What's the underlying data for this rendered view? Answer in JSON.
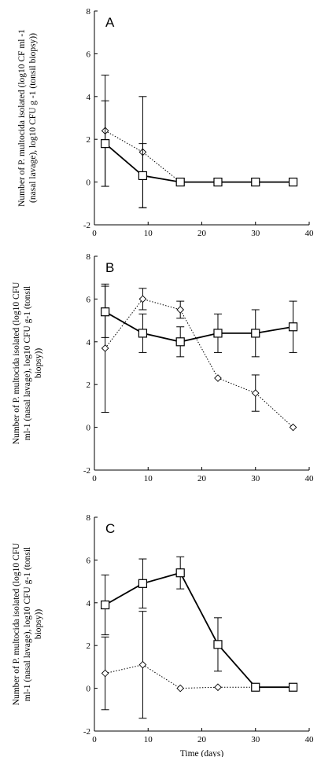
{
  "chart_data": [
    {
      "type": "line",
      "panel": "A",
      "ylabel": [
        "Number of P. multocida isolated (log10 CF ml -1",
        "(nasal lavage), log10 CFU g -1 (tonsil biopsy))"
      ],
      "xlim": [
        0,
        40
      ],
      "ylim": [
        -2,
        8
      ],
      "xticks": [
        "0",
        "10",
        "20",
        "30",
        "40"
      ],
      "yticks": [
        "-2",
        "0",
        "2",
        "4",
        "6",
        "8"
      ],
      "series": [
        {
          "marker": "square",
          "line": "solid",
          "x": [
            2,
            9,
            16,
            23,
            30,
            37
          ],
          "y": [
            1.8,
            0.3,
            0,
            0,
            0,
            0
          ],
          "err": [
            2.0,
            1.5,
            0,
            0,
            0,
            0
          ]
        },
        {
          "marker": "diamond",
          "line": "dotted",
          "x": [
            2,
            9,
            16
          ],
          "y": [
            2.4,
            1.4,
            0
          ],
          "err": [
            2.6,
            2.6,
            0
          ]
        }
      ]
    },
    {
      "type": "line",
      "panel": "B",
      "ylabel": [
        "Number of P. multocida isolated (log10 CFU",
        "ml-1 (nasal lavage), log10 CFU g-1 (tonsil",
        "biopsy))"
      ],
      "xlim": [
        0,
        40
      ],
      "ylim": [
        -2,
        8
      ],
      "xticks": [
        "0",
        "10",
        "20",
        "30",
        "40"
      ],
      "yticks": [
        "-2",
        "0",
        "2",
        "4",
        "6",
        "8"
      ],
      "series": [
        {
          "marker": "square",
          "line": "solid",
          "x": [
            2,
            9,
            16,
            23,
            30,
            37
          ],
          "y": [
            5.4,
            4.4,
            4.0,
            4.4,
            4.4,
            4.7
          ],
          "err": [
            1.2,
            0.9,
            0.7,
            0.9,
            1.1,
            1.2
          ]
        },
        {
          "marker": "diamond",
          "line": "dotted",
          "x": [
            2,
            9,
            16,
            23,
            30,
            37
          ],
          "y": [
            3.7,
            6.0,
            5.5,
            2.3,
            1.6,
            0
          ],
          "err": [
            3.0,
            0.5,
            0.4,
            0,
            0.85,
            0
          ]
        }
      ]
    },
    {
      "type": "line",
      "panel": "C",
      "ylabel": [
        "Number of P. multocida isolated (log10 CFU",
        "ml-1 (nasal lavage), log10 CFU g-1 (tonsil",
        "biopsy))"
      ],
      "xlabel": "Time (days)",
      "xlim": [
        0,
        40
      ],
      "ylim": [
        -2,
        8
      ],
      "xticks": [
        "0",
        "10",
        "20",
        "30",
        "40"
      ],
      "yticks": [
        "-2",
        "0",
        "2",
        "4",
        "6",
        "8"
      ],
      "series": [
        {
          "marker": "square",
          "line": "solid",
          "x": [
            2,
            9,
            16,
            23,
            30,
            37
          ],
          "y": [
            3.9,
            4.9,
            5.4,
            2.05,
            0.05,
            0.05
          ],
          "err": [
            1.4,
            1.15,
            0.75,
            1.25,
            0,
            0
          ]
        },
        {
          "marker": "diamond",
          "line": "dotted",
          "x": [
            2,
            9,
            16,
            23,
            30,
            37
          ],
          "y": [
            0.7,
            1.1,
            0,
            0.05,
            0.05,
            0.05
          ],
          "err": [
            1.7,
            2.5,
            0,
            0,
            0,
            0
          ]
        }
      ]
    }
  ]
}
